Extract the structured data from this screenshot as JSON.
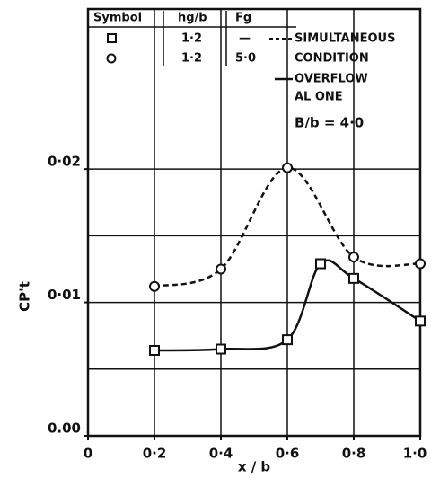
{
  "chart_data": {
    "type": "line",
    "xlabel": "x / b",
    "ylabel": "CP't",
    "xlim": [
      0,
      1.0
    ],
    "ylim": [
      0,
      0.032
    ],
    "xticks": [
      0,
      {
        "value": 0.2,
        "label": "0·2"
      },
      {
        "value": 0.4,
        "label": "0·4"
      },
      {
        "value": 0.6,
        "label": "0·6"
      },
      {
        "value": 0.8,
        "label": "0·8"
      },
      {
        "value": 1.0,
        "label": "1·0"
      }
    ],
    "yticks": [
      {
        "value": 0,
        "label": "0.00"
      },
      {
        "value": 0.01,
        "label": "0·01"
      },
      {
        "value": 0.02,
        "label": "0·02"
      }
    ],
    "xgrid": [
      0.2,
      0.4,
      0.6,
      0.8
    ],
    "ygrid": [
      0.005,
      0.01,
      0.015,
      0.02
    ],
    "legend": {
      "headers": [
        "Symbol",
        "hg/b",
        "Fg"
      ],
      "rows": [
        [
          "1·2",
          "—"
        ],
        [
          "1·2",
          "5·0"
        ]
      ],
      "keys": [
        [
          "SIMULTANEOUS",
          "CONDITION"
        ],
        [
          "OVERFLOW",
          "AL ONE"
        ]
      ]
    },
    "annotation": "B/b = 4·0",
    "series": [
      {
        "name": "SIMULTANEOUS CONDITION",
        "color": "#111",
        "dash": true,
        "marker": "circle",
        "x": [
          0.2,
          0.4,
          0.6,
          0.8,
          1.0
        ],
        "values": [
          0.0112,
          0.0125,
          0.0201,
          0.0134,
          0.0129
        ]
      },
      {
        "name": "OVERFLOW ALONE",
        "color": "#111",
        "dash": false,
        "marker": "square",
        "x": [
          0.2,
          0.4,
          0.6,
          0.7,
          0.8,
          1.0
        ],
        "values": [
          0.0064,
          0.0065,
          0.0072,
          0.0129,
          0.0118,
          0.0086
        ]
      }
    ]
  }
}
